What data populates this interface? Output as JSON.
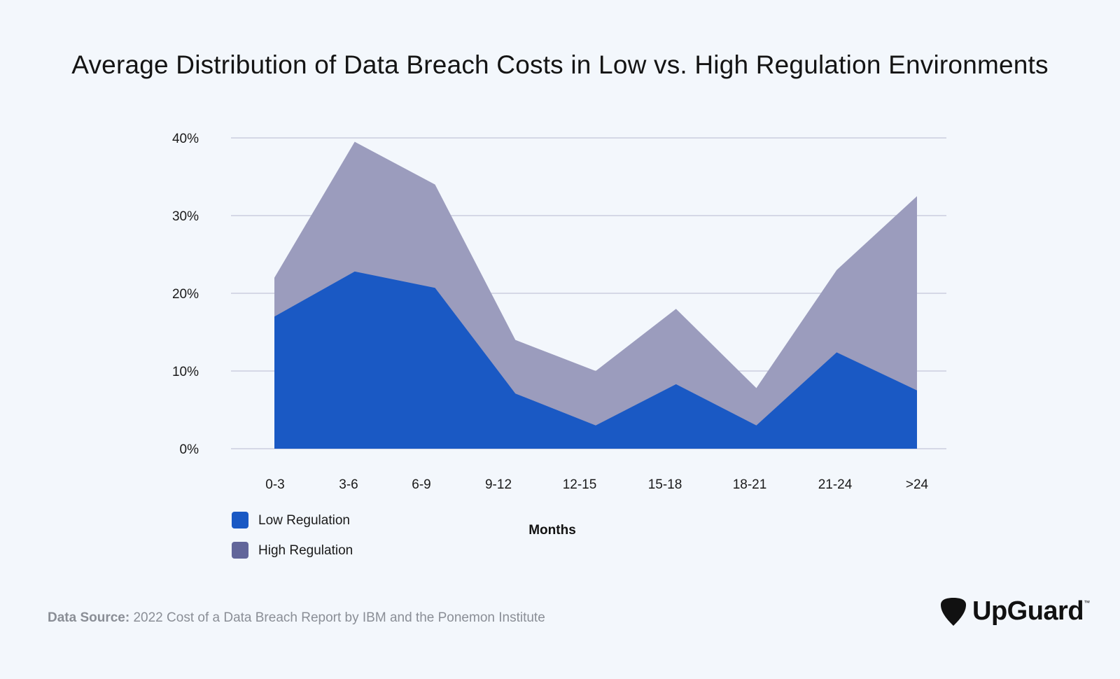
{
  "chart_data": {
    "type": "area",
    "title": "Average Distribution of Data Breach Costs in Low vs. High Regulation Environments",
    "xlabel": "Months",
    "ylabel": "",
    "categories": [
      "0-3",
      "3-6",
      "6-9",
      "9-12",
      "12-15",
      "15-18",
      "18-21",
      "21-24",
      ">24"
    ],
    "ylim": [
      0,
      40
    ],
    "yticks": [
      "0%",
      "10%",
      "20%",
      "30%",
      "40%"
    ],
    "grid": true,
    "legend_position": "bottom-left",
    "series": [
      {
        "name": "High Regulation",
        "values": [
          22,
          39.5,
          34,
          14,
          10,
          18,
          7.8,
          23,
          32.5
        ],
        "color": "#9b9cbd"
      },
      {
        "name": "Low Regulation",
        "values": [
          17,
          22.8,
          20.7,
          7.1,
          3,
          8.3,
          3,
          12.4,
          7.5
        ],
        "color": "#1a59c4"
      }
    ],
    "legend": [
      {
        "label": "Low Regulation",
        "color": "#1a59c4"
      },
      {
        "label": "High Regulation",
        "color": "#62669a"
      }
    ]
  },
  "source": {
    "key": "Data Source:",
    "text": " 2022 Cost of a Data Breach Report by IBM and the Ponemon Institute"
  },
  "logo": {
    "text": "UpGuard",
    "tm": "™",
    "icon": "guitar-pick-icon"
  }
}
